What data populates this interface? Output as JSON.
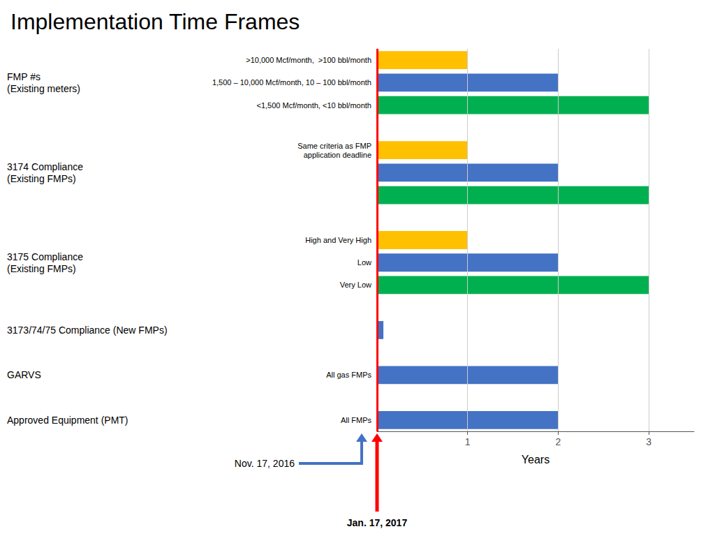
{
  "chart_data": {
    "type": "bar",
    "orientation": "horizontal",
    "title": "Implementation Time Frames",
    "xlabel": "Years",
    "xlim": [
      0,
      3.5
    ],
    "xticks": [
      1,
      2,
      3
    ],
    "grid": true,
    "groups": [
      {
        "label": "FMP #s\n(Existing meters)",
        "categories": [
          ">10,000 Mcf/month,  >100 bbl/month",
          "1,500 – 10,000 Mcf/month, 10 – 100 bbl/month",
          "<1,500 Mcf/month, <10 bbl/month"
        ],
        "values": [
          1.0,
          2.0,
          3.0
        ],
        "colors": [
          "#FFC000",
          "#4472C4",
          "#00B050"
        ]
      },
      {
        "label": "3174 Compliance\n(Existing FMPs)",
        "categories": [
          "Same criteria as FMP\napplication deadline",
          null,
          null
        ],
        "values": [
          1.0,
          2.0,
          3.0
        ],
        "colors": [
          "#FFC000",
          "#4472C4",
          "#00B050"
        ]
      },
      {
        "label": "3175 Compliance\n(Existing FMPs)",
        "categories": [
          "High and Very High",
          "Low",
          "Very Low"
        ],
        "values": [
          1.0,
          2.0,
          3.0
        ],
        "colors": [
          "#FFC000",
          "#4472C4",
          "#00B050"
        ]
      },
      {
        "label": "3173/74/75 Compliance (New FMPs)",
        "categories": [
          null
        ],
        "values": [
          0.07
        ],
        "colors": [
          "#4472C4"
        ]
      },
      {
        "label": "GARVS",
        "categories": [
          "All gas FMPs"
        ],
        "values": [
          2.0
        ],
        "colors": [
          "#4472C4"
        ]
      },
      {
        "label": "Approved Equipment (PMT)",
        "categories": [
          "All FMPs"
        ],
        "values": [
          2.0
        ],
        "colors": [
          "#4472C4"
        ]
      }
    ],
    "annotations": [
      {
        "text": "Jan. 17, 2017",
        "x": 0,
        "color": "#FF0000"
      },
      {
        "text": "Nov. 17, 2016",
        "color": "#4472C4"
      }
    ]
  }
}
